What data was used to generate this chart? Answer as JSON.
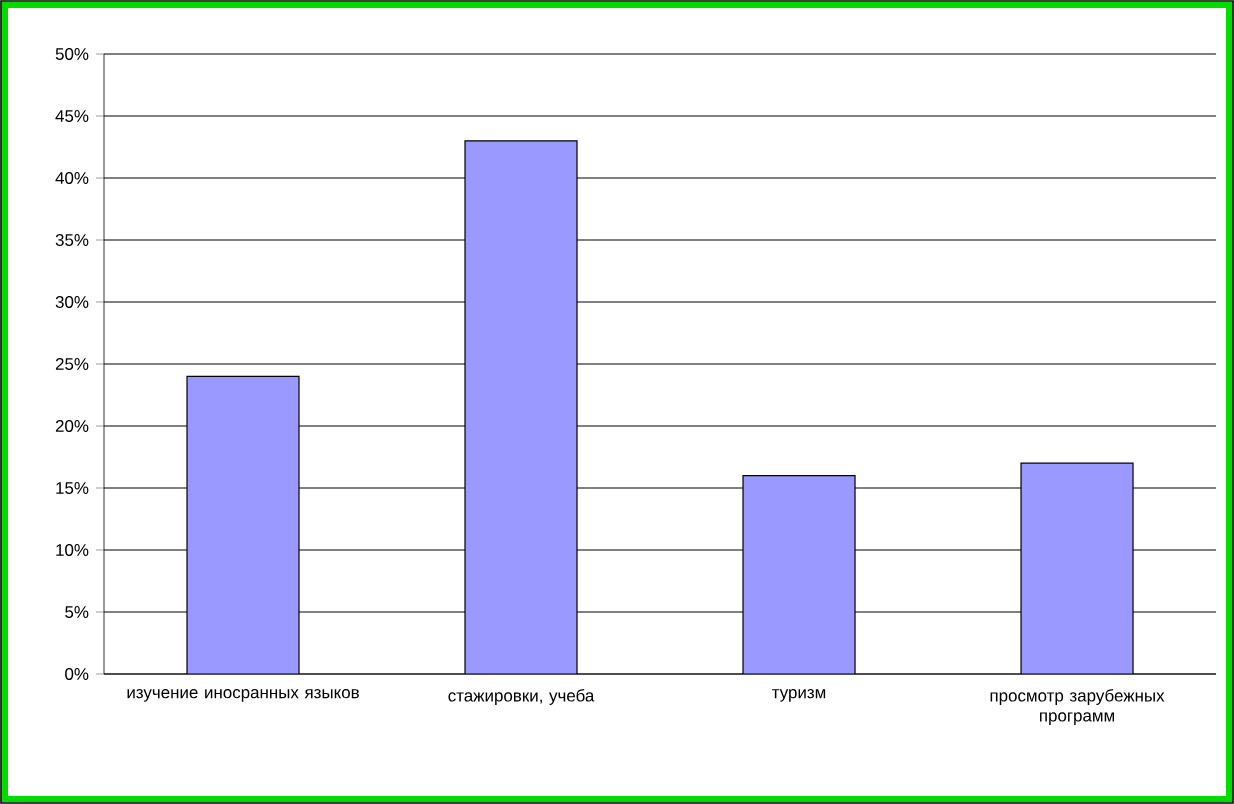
{
  "chart_data": {
    "type": "bar",
    "categories": [
      "изучение иносранных языков",
      "стажировки, учеба",
      "туризм",
      "просмотр зарубежных программ"
    ],
    "values": [
      24,
      43,
      16,
      17
    ],
    "color": "#9999ff",
    "ylim": [
      0,
      50
    ],
    "yticks": [
      {
        "value": 0,
        "label": "0%"
      },
      {
        "value": 5,
        "label": "5%"
      },
      {
        "value": 10,
        "label": "10%"
      },
      {
        "value": 15,
        "label": "15%"
      },
      {
        "value": 20,
        "label": "20%"
      },
      {
        "value": 25,
        "label": "25%"
      },
      {
        "value": 30,
        "label": "30%"
      },
      {
        "value": 35,
        "label": "35%"
      },
      {
        "value": 40,
        "label": "40%"
      },
      {
        "value": 45,
        "label": "45%"
      },
      {
        "value": 50,
        "label": "50%"
      }
    ],
    "grid": "y"
  }
}
